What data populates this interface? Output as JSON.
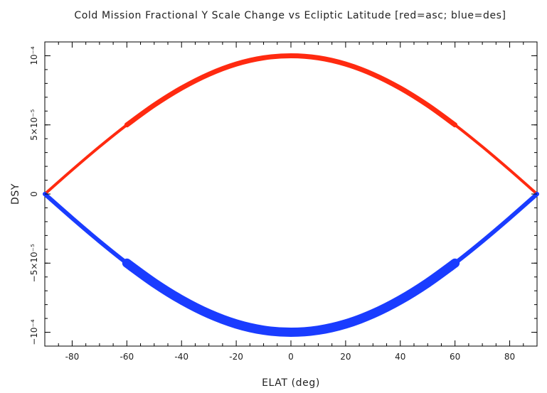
{
  "chart_data": {
    "type": "scatter",
    "title": "Cold Mission Fractional Y Scale Change vs Ecliptic Latitude [red=asc; blue=des]",
    "xlabel": "ELAT (deg)",
    "ylabel": "DSY",
    "xlim": [
      -90,
      90
    ],
    "ylim": [
      -0.00011,
      0.00011
    ],
    "x_ticks": [
      -80,
      -60,
      -40,
      -20,
      0,
      20,
      40,
      60,
      80
    ],
    "y_ticks": [
      {
        "value": 0.0001,
        "label": "10⁻⁴"
      },
      {
        "value": 5e-05,
        "label": "5×10⁻⁵"
      },
      {
        "value": 0,
        "label": "0"
      },
      {
        "value": -5e-05,
        "label": "−5×10⁻⁵"
      },
      {
        "value": -0.0001,
        "label": "−10⁻⁴"
      }
    ],
    "grid": false,
    "series": [
      {
        "name": "asc",
        "color": "#ff2a10",
        "x": [
          -90,
          -80,
          -70,
          -60,
          -50,
          -40,
          -30,
          -20,
          -10,
          0,
          10,
          20,
          30,
          40,
          50,
          60,
          70,
          80,
          90
        ],
        "y": [
          0,
          1.74e-05,
          3.42e-05,
          5e-05,
          6.43e-05,
          7.66e-05,
          8.66e-05,
          9.4e-05,
          9.85e-05,
          0.0001,
          9.85e-05,
          9.4e-05,
          8.66e-05,
          7.66e-05,
          6.43e-05,
          5e-05,
          3.42e-05,
          1.74e-05,
          0
        ]
      },
      {
        "name": "des",
        "color": "#1a3cff",
        "x": [
          -90,
          -80,
          -70,
          -60,
          -50,
          -40,
          -30,
          -20,
          -10,
          0,
          10,
          20,
          30,
          40,
          50,
          60,
          70,
          80,
          90
        ],
        "y": [
          0,
          -1.74e-05,
          -3.42e-05,
          -5e-05,
          -6.43e-05,
          -7.66e-05,
          -8.66e-05,
          -9.4e-05,
          -9.85e-05,
          -0.0001,
          -9.85e-05,
          -9.4e-05,
          -8.66e-05,
          -7.66e-05,
          -6.43e-05,
          -5e-05,
          -3.42e-05,
          -1.74e-05,
          0
        ]
      }
    ]
  }
}
